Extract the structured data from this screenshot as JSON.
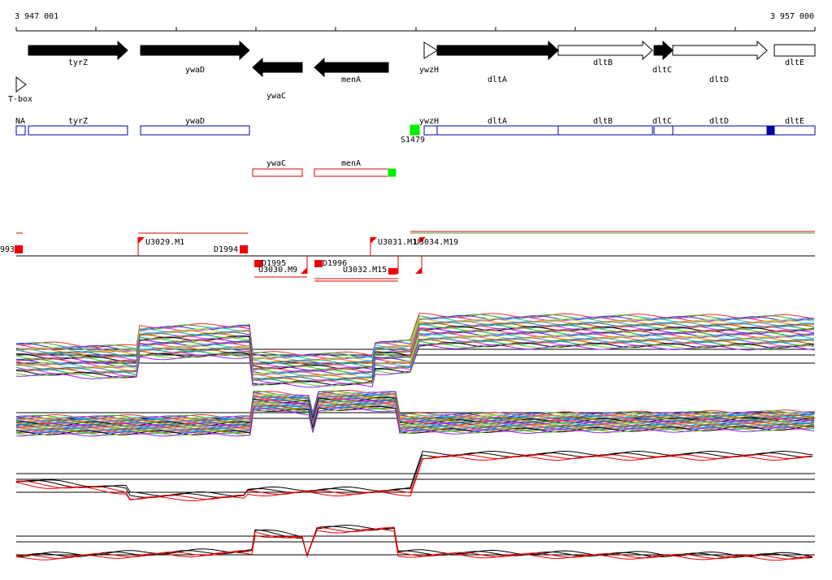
{
  "ruler": {
    "start": "3 947 001",
    "end": "3 957 000"
  },
  "genes": [
    "T-box",
    "tyrZ",
    "ywaD",
    "ywaC",
    "menA",
    "ywzH",
    "dltA",
    "dltB",
    "dltC",
    "dltD",
    "dltE"
  ],
  "transcripts_forward": [
    "NA",
    "tyrZ",
    "ywaD",
    "ywzH",
    "dltA",
    "dltB",
    "dltC",
    "dltD",
    "dltE",
    "S1479"
  ],
  "transcripts_reverse": [
    "ywaC",
    "menA"
  ],
  "segments": [
    "993",
    "U3029.M1",
    "D1994",
    "D1995",
    "U3030.M9",
    "D1996",
    "U3031.M1",
    "U3034.M19",
    "U3032.M15"
  ]
}
